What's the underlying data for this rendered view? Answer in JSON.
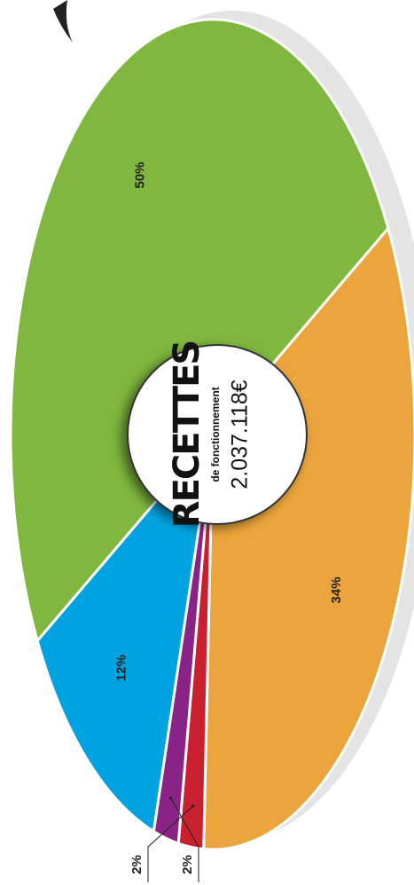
{
  "chart_data": {
    "type": "pie",
    "center_title": "RECETTES",
    "center_subtitle": "de fonctionnement",
    "center_total": "2.037.118€",
    "values": [
      34,
      2,
      2,
      12,
      50
    ],
    "value_labels": [
      "34%",
      "2%",
      "2%",
      "12%",
      "50%"
    ],
    "colors": [
      "#eba53c",
      "#c8202f",
      "#8a2386",
      "#00a3df",
      "#80b73e"
    ]
  }
}
